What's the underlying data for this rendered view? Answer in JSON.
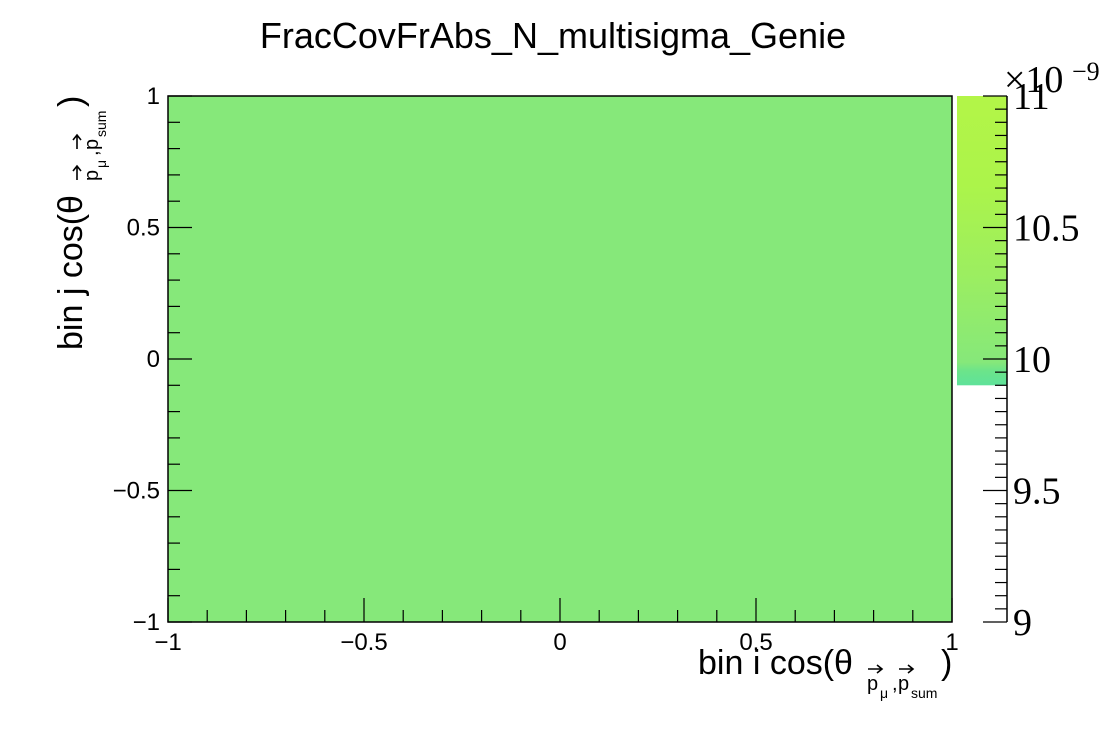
{
  "chart_data": {
    "type": "heatmap",
    "title": "FracCovFrAbs_N_multisigma_Genie",
    "xlabel": {
      "prefix": "bin i cos(θ",
      "sub": "p⃗μ,p⃗sum",
      "sub_p1": "p",
      "sub_mu": "μ",
      "sub_comma": ",",
      "sub_p2": "p",
      "sub_sum": "sum",
      "suffix": ")"
    },
    "ylabel": {
      "prefix": "bin j cos(θ",
      "sub": "p⃗μ,p⃗sum",
      "sub_p1": "p",
      "sub_mu": "μ",
      "sub_comma": ",",
      "sub_p2": "p",
      "sub_sum": "sum",
      "suffix": ")"
    },
    "xlim": [
      -1,
      1
    ],
    "ylim": [
      -1,
      1
    ],
    "x_ticks": [
      -1,
      -0.5,
      0,
      0.5,
      1
    ],
    "y_ticks": [
      -1,
      -0.5,
      0,
      0.5,
      1
    ],
    "x_tick_labels": [
      "−1",
      "−0.5",
      "0",
      "0.5",
      "1"
    ],
    "y_tick_labels": [
      "−1",
      "−0.5",
      "0",
      "0.5",
      "1"
    ],
    "cells": [
      {
        "x_range": [
          -1,
          1
        ],
        "y_range": [
          -1,
          1
        ],
        "value": 9.95e-09,
        "color": "#86e87a"
      }
    ],
    "colorbar": {
      "range": [
        9e-09,
        1.1e-08
      ],
      "multiplier": "×10",
      "exponent": "−9",
      "tick_values": [
        9,
        9.5,
        10,
        10.5,
        11
      ],
      "tick_labels": [
        "9",
        "9.5",
        "10",
        "10.5",
        "11"
      ],
      "filled_range": [
        9.9,
        11
      ],
      "gradient_colors": [
        "#5ee29a",
        "#6ce48a",
        "#86e87a",
        "#9cee60",
        "#acf44a",
        "#b3f548"
      ]
    }
  }
}
